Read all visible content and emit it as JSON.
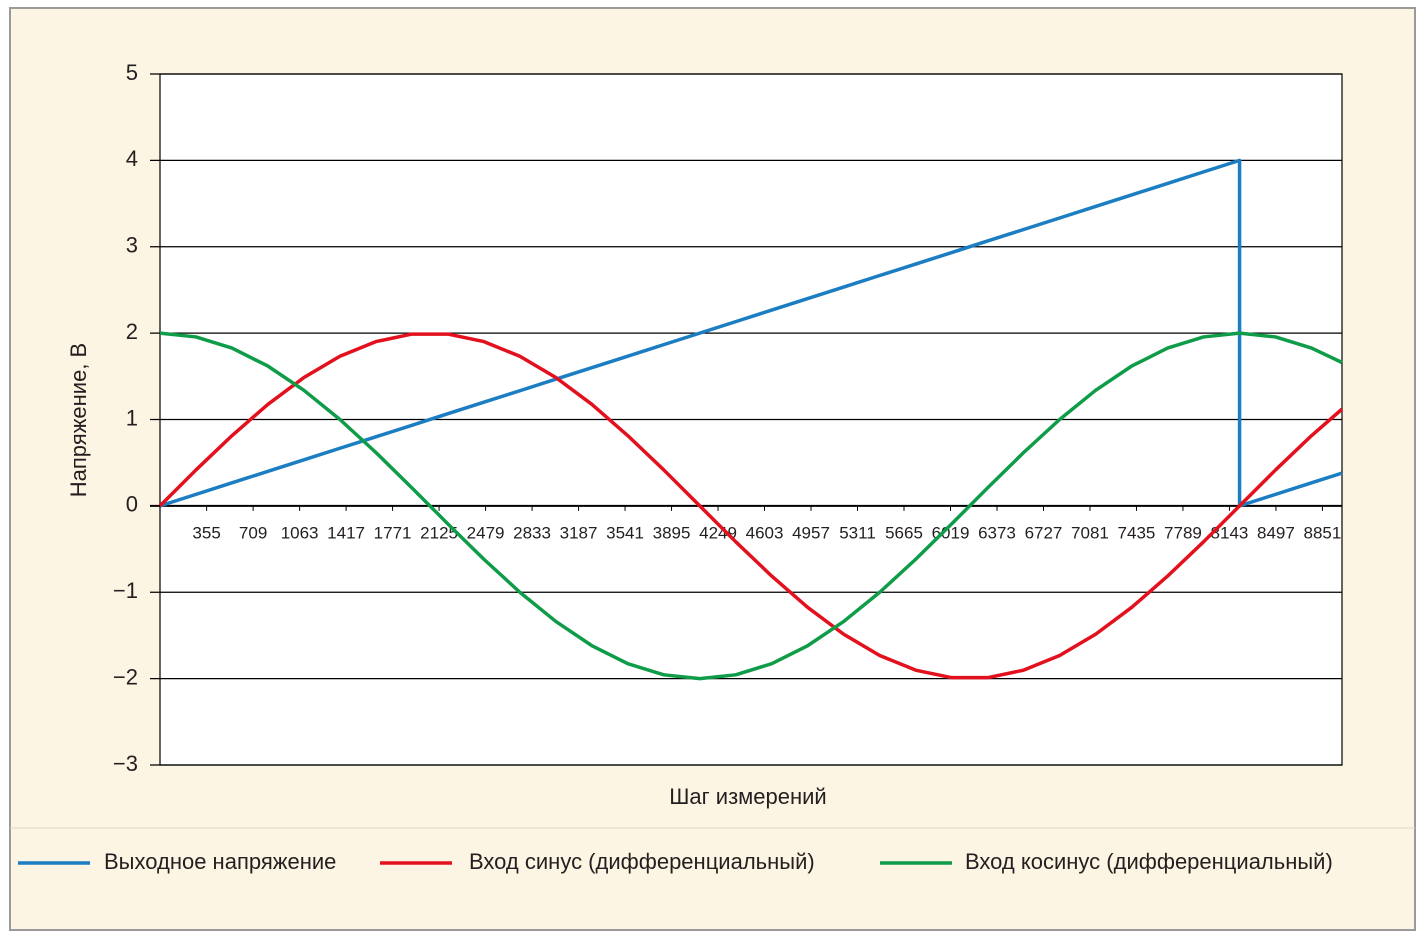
{
  "chart_data": {
    "type": "line",
    "x_label": "Шаг измерений",
    "y_label": "Напряжение, В",
    "x": [
      0,
      274,
      548,
      822,
      1096,
      1370,
      1644,
      1918,
      2192,
      2466,
      2740,
      3014,
      3288,
      3562,
      3836,
      4110,
      4384,
      4658,
      4932,
      5206,
      5480,
      5754,
      6028,
      6302,
      6576,
      6850,
      7124,
      7398,
      7672,
      7946,
      8220,
      8220,
      8494,
      8768,
      9000
    ],
    "series": [
      {
        "name": "Выходное напряжение",
        "color": "#1b7dc2",
        "values": [
          0,
          0.133,
          0.267,
          0.4,
          0.533,
          0.667,
          0.8,
          0.933,
          1.067,
          1.2,
          1.333,
          1.467,
          1.6,
          1.733,
          1.867,
          2,
          2.133,
          2.267,
          2.4,
          2.533,
          2.667,
          2.8,
          2.933,
          3.067,
          3.2,
          3.333,
          3.467,
          3.6,
          3.733,
          3.867,
          4,
          0,
          0.133,
          0.267,
          0.379
        ]
      },
      {
        "name": "Вход синус (дифференциальный)",
        "color": "#e3101e",
        "values": [
          0,
          0.416,
          0.813,
          1.176,
          1.486,
          1.732,
          1.902,
          1.989,
          1.989,
          1.902,
          1.732,
          1.486,
          1.176,
          0.813,
          0.416,
          0,
          -0.416,
          -0.813,
          -1.176,
          -1.486,
          -1.732,
          -1.902,
          -1.989,
          -1.989,
          -1.902,
          -1.732,
          -1.486,
          -1.176,
          -0.813,
          -0.416,
          0,
          0,
          0.416,
          0.813,
          1.12
        ]
      },
      {
        "name": "Вход косинус (дифференциальный)",
        "color": "#0f9c49",
        "values": [
          2,
          1.956,
          1.827,
          1.618,
          1.338,
          1,
          0.618,
          0.209,
          -0.209,
          -0.618,
          -1,
          -1.338,
          -1.618,
          -1.827,
          -1.956,
          -2,
          -1.956,
          -1.827,
          -1.618,
          -1.338,
          -1,
          -0.618,
          -0.209,
          0.209,
          0.618,
          1,
          1.338,
          1.618,
          1.827,
          1.956,
          2,
          2,
          1.956,
          1.827,
          1.66
        ]
      }
    ],
    "xlim": [
      0,
      9000
    ],
    "xticks": [
      355,
      709,
      1063,
      1417,
      1771,
      2125,
      2479,
      2833,
      3187,
      3541,
      3895,
      4249,
      4603,
      4957,
      5311,
      5665,
      6019,
      6373,
      6727,
      7081,
      7435,
      7789,
      8143,
      8497,
      8851
    ],
    "ylim": [
      -3,
      5
    ],
    "yticks": [
      {
        "value": -3,
        "label": "−3"
      },
      {
        "value": -2,
        "label": "−2"
      },
      {
        "value": -1,
        "label": "−1"
      },
      0,
      1,
      2,
      3,
      4,
      5
    ],
    "grid": true,
    "legend": "bottom"
  }
}
